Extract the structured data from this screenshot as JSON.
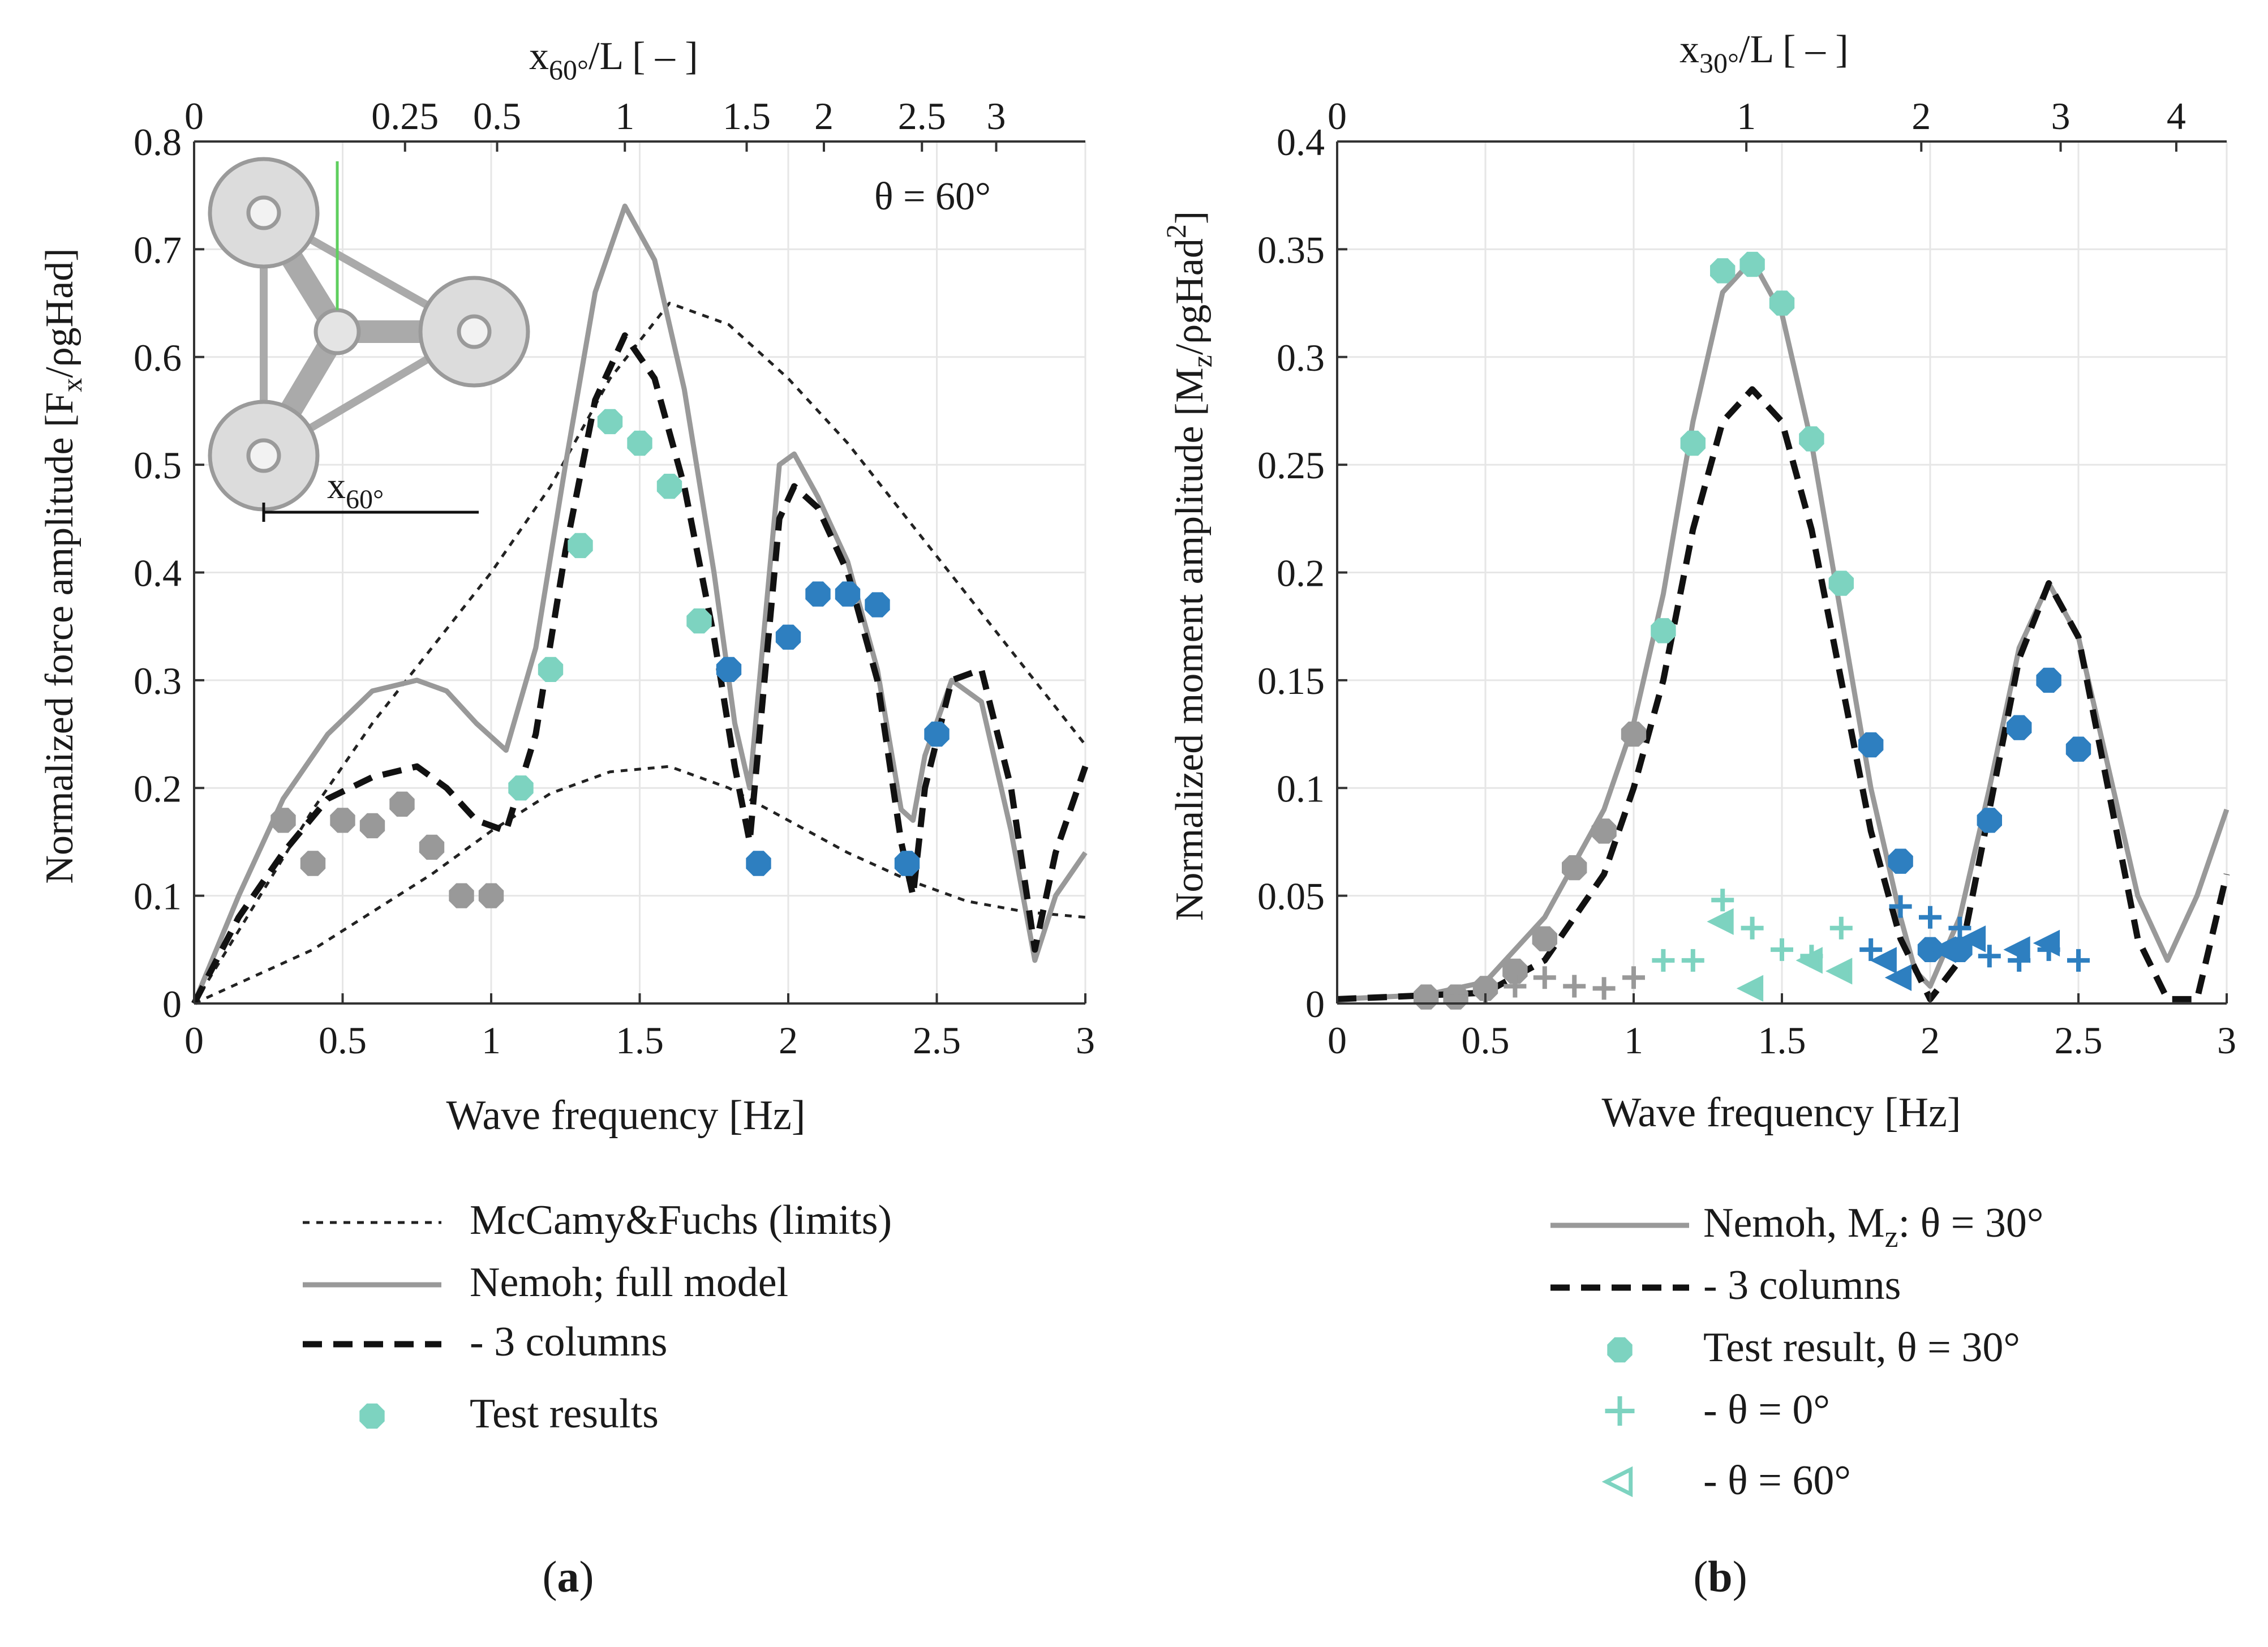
{
  "chart_data": [
    {
      "type": "line",
      "panel_label": "a",
      "xlabel": "Wave frequency [Hz]",
      "ylabel": "Normalized force amplitude [F_x/ρgHad]",
      "ylabel_parts": {
        "a": "Normalized force amplitude [F",
        "sub": "x",
        "b": "/ρgHad]"
      },
      "xlim": [
        0,
        3
      ],
      "ylim": [
        0,
        0.8
      ],
      "xticks": [
        0,
        0.5,
        1,
        1.5,
        2,
        2.5,
        3
      ],
      "yticks": [
        0,
        0.1,
        0.2,
        0.3,
        0.4,
        0.5,
        0.6,
        0.7,
        0.8
      ],
      "top_axis": {
        "label_parts": {
          "a": "x",
          "sub": "60°",
          "b": "/L [ – ]"
        },
        "ticks": [
          {
            "label": "0",
            "at_freq": 0.0
          },
          {
            "label": "0.25",
            "at_freq": 0.71
          },
          {
            "label": "0.5",
            "at_freq": 1.02
          },
          {
            "label": "1",
            "at_freq": 1.45
          },
          {
            "label": "1.5",
            "at_freq": 1.86
          },
          {
            "label": "2",
            "at_freq": 2.12
          },
          {
            "label": "2.5",
            "at_freq": 2.45
          },
          {
            "label": "3",
            "at_freq": 2.7
          }
        ]
      },
      "annotation": "θ = 60°",
      "inset": {
        "dimension_label_parts": {
          "a": "x",
          "sub": "60°"
        }
      },
      "series": [
        {
          "name": "McCamy&Fuchs (limits)",
          "style": "dotted",
          "color": "#222222",
          "x": [
            0,
            0.2,
            0.4,
            0.6,
            0.8,
            1.0,
            1.2,
            1.4,
            1.6,
            1.8,
            2.0,
            2.2,
            2.4,
            2.6,
            2.8,
            3.0
          ],
          "y": [
            0,
            0.09,
            0.18,
            0.26,
            0.33,
            0.4,
            0.48,
            0.58,
            0.65,
            0.63,
            0.58,
            0.52,
            0.45,
            0.38,
            0.31,
            0.24
          ]
        },
        {
          "name": "McCamy&Fuchs (limits) lower",
          "style": "dotted",
          "color": "#222222",
          "legend": false,
          "x": [
            0,
            0.2,
            0.4,
            0.6,
            0.8,
            1.0,
            1.2,
            1.4,
            1.6,
            1.8,
            2.0,
            2.2,
            2.4,
            2.6,
            2.8,
            3.0
          ],
          "y": [
            0,
            0.025,
            0.05,
            0.085,
            0.12,
            0.16,
            0.195,
            0.215,
            0.22,
            0.2,
            0.17,
            0.14,
            0.115,
            0.095,
            0.085,
            0.08
          ]
        },
        {
          "name": "Nemoh; full model",
          "style": "solid",
          "color": "#999999",
          "x": [
            0,
            0.15,
            0.3,
            0.45,
            0.6,
            0.75,
            0.85,
            0.95,
            1.05,
            1.15,
            1.25,
            1.35,
            1.45,
            1.55,
            1.65,
            1.75,
            1.82,
            1.87,
            1.92,
            1.97,
            2.02,
            2.1,
            2.2,
            2.3,
            2.38,
            2.42,
            2.46,
            2.55,
            2.65,
            2.75,
            2.83,
            2.9,
            3.0
          ],
          "y": [
            0,
            0.1,
            0.19,
            0.25,
            0.29,
            0.3,
            0.29,
            0.26,
            0.235,
            0.33,
            0.5,
            0.66,
            0.74,
            0.69,
            0.57,
            0.4,
            0.26,
            0.2,
            0.35,
            0.5,
            0.51,
            0.47,
            0.41,
            0.31,
            0.18,
            0.17,
            0.23,
            0.3,
            0.28,
            0.16,
            0.04,
            0.1,
            0.14
          ]
        },
        {
          "name": "- 3 columns",
          "style": "dashed",
          "color": "#111111",
          "x": [
            0,
            0.15,
            0.3,
            0.45,
            0.6,
            0.75,
            0.85,
            0.95,
            1.05,
            1.15,
            1.25,
            1.35,
            1.45,
            1.55,
            1.65,
            1.75,
            1.82,
            1.87,
            1.92,
            1.97,
            2.02,
            2.1,
            2.2,
            2.3,
            2.38,
            2.42,
            2.46,
            2.55,
            2.65,
            2.75,
            2.83,
            2.9,
            3.0
          ],
          "y": [
            0,
            0.08,
            0.14,
            0.19,
            0.21,
            0.22,
            0.2,
            0.17,
            0.16,
            0.25,
            0.42,
            0.56,
            0.62,
            0.58,
            0.48,
            0.34,
            0.22,
            0.15,
            0.3,
            0.45,
            0.48,
            0.46,
            0.4,
            0.3,
            0.15,
            0.1,
            0.2,
            0.3,
            0.31,
            0.2,
            0.05,
            0.14,
            0.22
          ]
        },
        {
          "name": "Test results",
          "style": "marker-hex",
          "legend_color": "#7dd3c0",
          "x": [
            0.3,
            0.4,
            0.5,
            0.6,
            0.7,
            0.8,
            0.9,
            1.0,
            1.1,
            1.2,
            1.3,
            1.4,
            1.5,
            1.6,
            1.7,
            1.8,
            1.9,
            2.0,
            2.1,
            2.2,
            2.3,
            2.4,
            2.5
          ],
          "y": [
            0.17,
            0.13,
            0.17,
            0.165,
            0.185,
            0.145,
            0.1,
            0.1,
            0.2,
            0.31,
            0.425,
            0.54,
            0.52,
            0.48,
            0.355,
            0.31,
            0.13,
            0.34,
            0.38,
            0.38,
            0.37,
            0.13,
            0.25
          ],
          "colors": [
            "#999999",
            "#999999",
            "#999999",
            "#999999",
            "#999999",
            "#999999",
            "#999999",
            "#999999",
            "#7dd3c0",
            "#7dd3c0",
            "#7dd3c0",
            "#7dd3c0",
            "#7dd3c0",
            "#7dd3c0",
            "#7dd3c0",
            "#2e7fc0",
            "#2e7fc0",
            "#2e7fc0",
            "#2e7fc0",
            "#2e7fc0",
            "#2e7fc0",
            "#2e7fc0",
            "#2e7fc0"
          ]
        }
      ],
      "legend": [
        {
          "label": "McCamy&Fuchs (limits)",
          "style": "dotted",
          "color": "#222222"
        },
        {
          "label": "Nemoh; full model",
          "style": "solid",
          "color": "#999999"
        },
        {
          "label": "- 3 columns",
          "style": "dashed",
          "color": "#111111"
        },
        {
          "label": "Test results",
          "style": "marker-hex",
          "color": "#7dd3c0"
        }
      ]
    },
    {
      "type": "line",
      "panel_label": "b",
      "xlabel": "Wave frequency [Hz]",
      "ylabel": "Normalized moment amplitude [M_z/ρgHad^2]",
      "ylabel_parts": {
        "a": "Normalized moment amplitude [M",
        "sub": "z",
        "b": "/ρgHad",
        "sup": "2",
        "c": "]"
      },
      "xlim": [
        0,
        3
      ],
      "ylim": [
        0,
        0.4
      ],
      "xticks": [
        0,
        0.5,
        1,
        1.5,
        2,
        2.5,
        3
      ],
      "yticks": [
        0,
        0.05,
        0.1,
        0.15,
        0.2,
        0.25,
        0.3,
        0.35,
        0.4
      ],
      "top_axis": {
        "label_parts": {
          "a": "x",
          "sub": "30°",
          "b": "/L [ – ]"
        },
        "ticks": [
          {
            "label": "0",
            "at_freq": 0.0
          },
          {
            "label": "1",
            "at_freq": 1.38
          },
          {
            "label": "2",
            "at_freq": 1.97
          },
          {
            "label": "3",
            "at_freq": 2.44
          },
          {
            "label": "4",
            "at_freq": 2.83
          }
        ]
      },
      "series": [
        {
          "name": "Nemoh, M_z: θ = 30°",
          "style": "solid",
          "color": "#999999",
          "x": [
            0,
            0.3,
            0.5,
            0.7,
            0.9,
            1.0,
            1.1,
            1.2,
            1.3,
            1.4,
            1.5,
            1.6,
            1.7,
            1.8,
            1.9,
            1.95,
            2.0,
            2.1,
            2.2,
            2.3,
            2.4,
            2.5,
            2.6,
            2.7,
            2.8,
            2.9,
            3.0
          ],
          "y": [
            0.002,
            0.004,
            0.01,
            0.04,
            0.09,
            0.13,
            0.19,
            0.27,
            0.33,
            0.345,
            0.32,
            0.26,
            0.18,
            0.1,
            0.04,
            0.015,
            0.008,
            0.04,
            0.1,
            0.165,
            0.195,
            0.17,
            0.11,
            0.05,
            0.02,
            0.05,
            0.09
          ]
        },
        {
          "name": "- 3 columns",
          "style": "dashed",
          "color": "#111111",
          "x": [
            0,
            0.5,
            0.7,
            0.9,
            1.0,
            1.1,
            1.2,
            1.3,
            1.4,
            1.5,
            1.6,
            1.7,
            1.8,
            1.9,
            2.0,
            2.1,
            2.2,
            2.3,
            2.4,
            2.5,
            2.6,
            2.7,
            2.8,
            2.9,
            3.0
          ],
          "y": [
            0.002,
            0.005,
            0.02,
            0.06,
            0.1,
            0.15,
            0.22,
            0.27,
            0.285,
            0.27,
            0.22,
            0.15,
            0.08,
            0.03,
            0.002,
            0.02,
            0.09,
            0.16,
            0.195,
            0.17,
            0.1,
            0.03,
            0.002,
            0.002,
            0.06
          ]
        },
        {
          "name": "Test result, θ = 30°",
          "style": "marker-hex",
          "legend_color": "#7dd3c0",
          "x": [
            0.3,
            0.4,
            0.5,
            0.6,
            0.7,
            0.8,
            0.9,
            1.0,
            1.1,
            1.2,
            1.3,
            1.4,
            1.5,
            1.6,
            1.7,
            1.8,
            1.9,
            2.0,
            2.1,
            2.2,
            2.3,
            2.4,
            2.5
          ],
          "y": [
            0.003,
            0.003,
            0.007,
            0.015,
            0.03,
            0.063,
            0.08,
            0.125,
            0.173,
            0.26,
            0.34,
            0.343,
            0.325,
            0.262,
            0.195,
            0.12,
            0.066,
            0.025,
            0.025,
            0.085,
            0.128,
            0.15,
            0.118
          ],
          "colors": [
            "#999999",
            "#999999",
            "#999999",
            "#999999",
            "#999999",
            "#999999",
            "#999999",
            "#999999",
            "#7dd3c0",
            "#7dd3c0",
            "#7dd3c0",
            "#7dd3c0",
            "#7dd3c0",
            "#7dd3c0",
            "#7dd3c0",
            "#2e7fc0",
            "#2e7fc0",
            "#2e7fc0",
            "#2e7fc0",
            "#2e7fc0",
            "#2e7fc0",
            "#2e7fc0",
            "#2e7fc0"
          ]
        },
        {
          "name": "- θ = 0°",
          "style": "marker-plus",
          "legend_color": "#7dd3c0",
          "x": [
            0.4,
            0.5,
            0.6,
            0.7,
            0.8,
            0.9,
            1.0,
            1.1,
            1.2,
            1.3,
            1.4,
            1.5,
            1.6,
            1.7,
            1.8,
            1.9,
            2.0,
            2.1,
            2.2,
            2.3,
            2.4,
            2.5
          ],
          "y": [
            0.003,
            0.005,
            0.008,
            0.012,
            0.008,
            0.007,
            0.012,
            0.02,
            0.02,
            0.048,
            0.035,
            0.025,
            0.022,
            0.035,
            0.025,
            0.045,
            0.04,
            0.035,
            0.022,
            0.02,
            0.025,
            0.02
          ],
          "colors": [
            "#999999",
            "#999999",
            "#999999",
            "#999999",
            "#999999",
            "#999999",
            "#999999",
            "#7dd3c0",
            "#7dd3c0",
            "#7dd3c0",
            "#7dd3c0",
            "#7dd3c0",
            "#7dd3c0",
            "#7dd3c0",
            "#2e7fc0",
            "#2e7fc0",
            "#2e7fc0",
            "#2e7fc0",
            "#2e7fc0",
            "#2e7fc0",
            "#2e7fc0",
            "#2e7fc0"
          ]
        },
        {
          "name": "- θ = 60°",
          "style": "marker-tri",
          "legend_color": "#7dd3c0",
          "x": [
            1.3,
            1.4,
            1.6,
            1.7,
            1.85,
            1.9,
            2.05,
            2.15,
            2.3,
            2.4
          ],
          "y": [
            0.038,
            0.007,
            0.02,
            0.015,
            0.02,
            0.012,
            0.025,
            0.03,
            0.025,
            0.028
          ],
          "colors": [
            "#7dd3c0",
            "#7dd3c0",
            "#7dd3c0",
            "#7dd3c0",
            "#2e7fc0",
            "#2e7fc0",
            "#2e7fc0",
            "#2e7fc0",
            "#2e7fc0",
            "#2e7fc0"
          ]
        }
      ],
      "legend": [
        {
          "label_parts": {
            "a": "Nemoh, M",
            "sub": "z",
            "b": ": θ = 30°"
          },
          "style": "solid",
          "color": "#999999"
        },
        {
          "label": "- 3 columns",
          "style": "dashed",
          "color": "#111111"
        },
        {
          "label": "Test result, θ = 30°",
          "style": "marker-hex",
          "color": "#7dd3c0"
        },
        {
          "label": "- θ = 0°",
          "style": "marker-plus",
          "color": "#7dd3c0"
        },
        {
          "label": "- θ = 60°",
          "style": "marker-tri",
          "color": "#7dd3c0"
        }
      ]
    }
  ]
}
